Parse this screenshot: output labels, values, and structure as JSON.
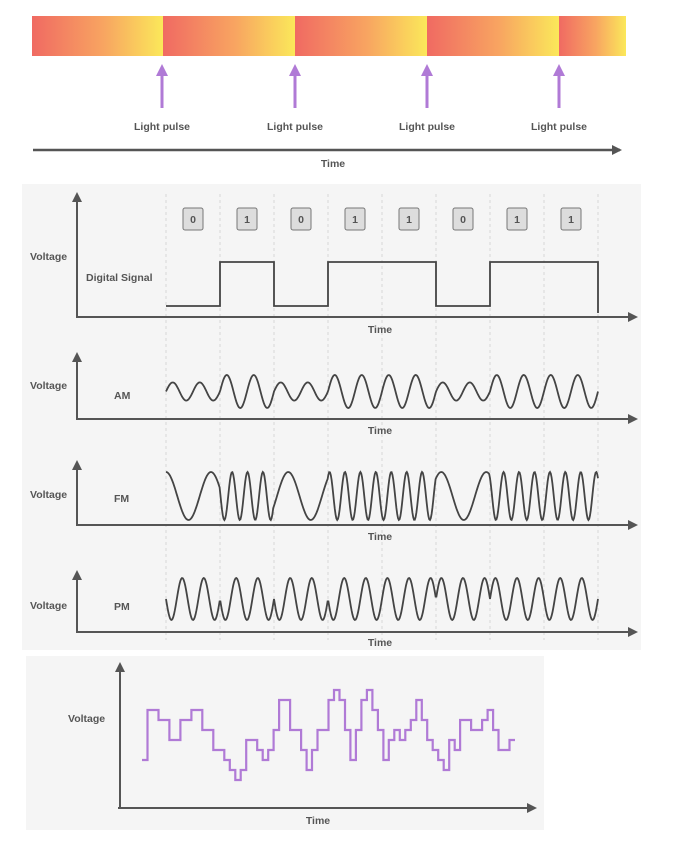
{
  "pulse_band": {
    "pulse_label": "Light pulse",
    "time_label": "Time",
    "colors": {
      "warm": "#f06a62",
      "bright": "#fbe85a",
      "arrow": "#b07ad6"
    }
  },
  "modulation": {
    "bits": [
      "0",
      "1",
      "0",
      "1",
      "1",
      "0",
      "1",
      "1"
    ],
    "rows": [
      {
        "ylabel": "Voltage",
        "name": "Digital Signal",
        "xlabel": "Time"
      },
      {
        "ylabel": "Voltage",
        "name": "AM",
        "xlabel": "Time"
      },
      {
        "ylabel": "Voltage",
        "name": "FM",
        "xlabel": "Time"
      },
      {
        "ylabel": "Voltage",
        "name": "PM",
        "xlabel": "Time"
      }
    ],
    "colors": {
      "wave": "#444444",
      "panel": "#f5f5f5",
      "bit_box": "#dddddd"
    }
  },
  "stepped": {
    "ylabel": "Voltage",
    "xlabel": "Time",
    "color": "#b07ad6",
    "levels": [
      3,
      8,
      8,
      7,
      7,
      5,
      5,
      7,
      7,
      8,
      8,
      6,
      6,
      4,
      4,
      3,
      2,
      1,
      2,
      5,
      5,
      4,
      3,
      4,
      6,
      9,
      9,
      6,
      6,
      4,
      2,
      4,
      6,
      6,
      9,
      10,
      9,
      6,
      3,
      6,
      9,
      10,
      8,
      6,
      3,
      5,
      6,
      5,
      6,
      7,
      9,
      7,
      5,
      4,
      3,
      2,
      5,
      4,
      7,
      7,
      6,
      6,
      7,
      8,
      6,
      4,
      4,
      5
    ]
  }
}
